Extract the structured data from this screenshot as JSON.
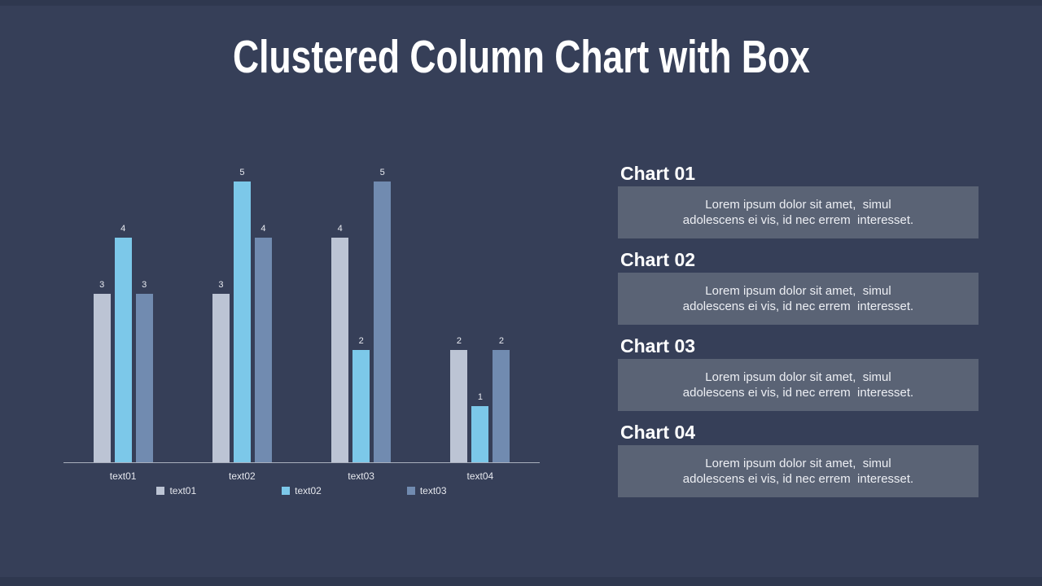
{
  "slide": {
    "title": "Clustered Column Chart with Box"
  },
  "chart_data": {
    "type": "bar",
    "title": "Clustered Column Chart with Box",
    "categories": [
      "text01",
      "text02",
      "text03",
      "text04"
    ],
    "series": [
      {
        "name": "text01",
        "color": "#bcc4d4",
        "values": [
          3,
          3,
          4,
          2
        ]
      },
      {
        "name": "text02",
        "color": "#7cc8e9",
        "values": [
          4,
          5,
          2,
          1
        ]
      },
      {
        "name": "text03",
        "color": "#718bb0",
        "values": [
          3,
          4,
          5,
          2
        ]
      }
    ],
    "ylim": [
      0,
      5
    ],
    "grid": false,
    "value_labels": true,
    "legend_position": "bottom",
    "legend": [
      "text01",
      "text02",
      "text03"
    ],
    "axis_line_color": "#a9afbc"
  },
  "panel": {
    "sections": [
      {
        "heading": "Chart 01",
        "body_lines": [
          "Lorem ipsum dolor sit amet,  simul",
          "adolescens ei vis, id nec errem  interesset."
        ]
      },
      {
        "heading": "Chart 02",
        "body_lines": [
          "Lorem ipsum dolor sit amet,  simul",
          "adolescens ei vis, id nec errem  interesset."
        ]
      },
      {
        "heading": "Chart 03",
        "body_lines": [
          "Lorem ipsum dolor sit amet,  simul",
          "adolescens ei vis, id nec errem  interesset."
        ]
      },
      {
        "heading": "Chart 04",
        "body_lines": [
          "Lorem ipsum dolor sit amet,  simul",
          "adolescens ei vis, id nec errem  interesset."
        ]
      }
    ]
  },
  "colors": {
    "background": "#363f58",
    "edge_strip": "#2f384f",
    "box_background": "#5a6375",
    "title_text": "#ffffff",
    "body_text": "#edeff4",
    "axis_line": "#a9afbc",
    "label_text": "#e8eaf0"
  }
}
